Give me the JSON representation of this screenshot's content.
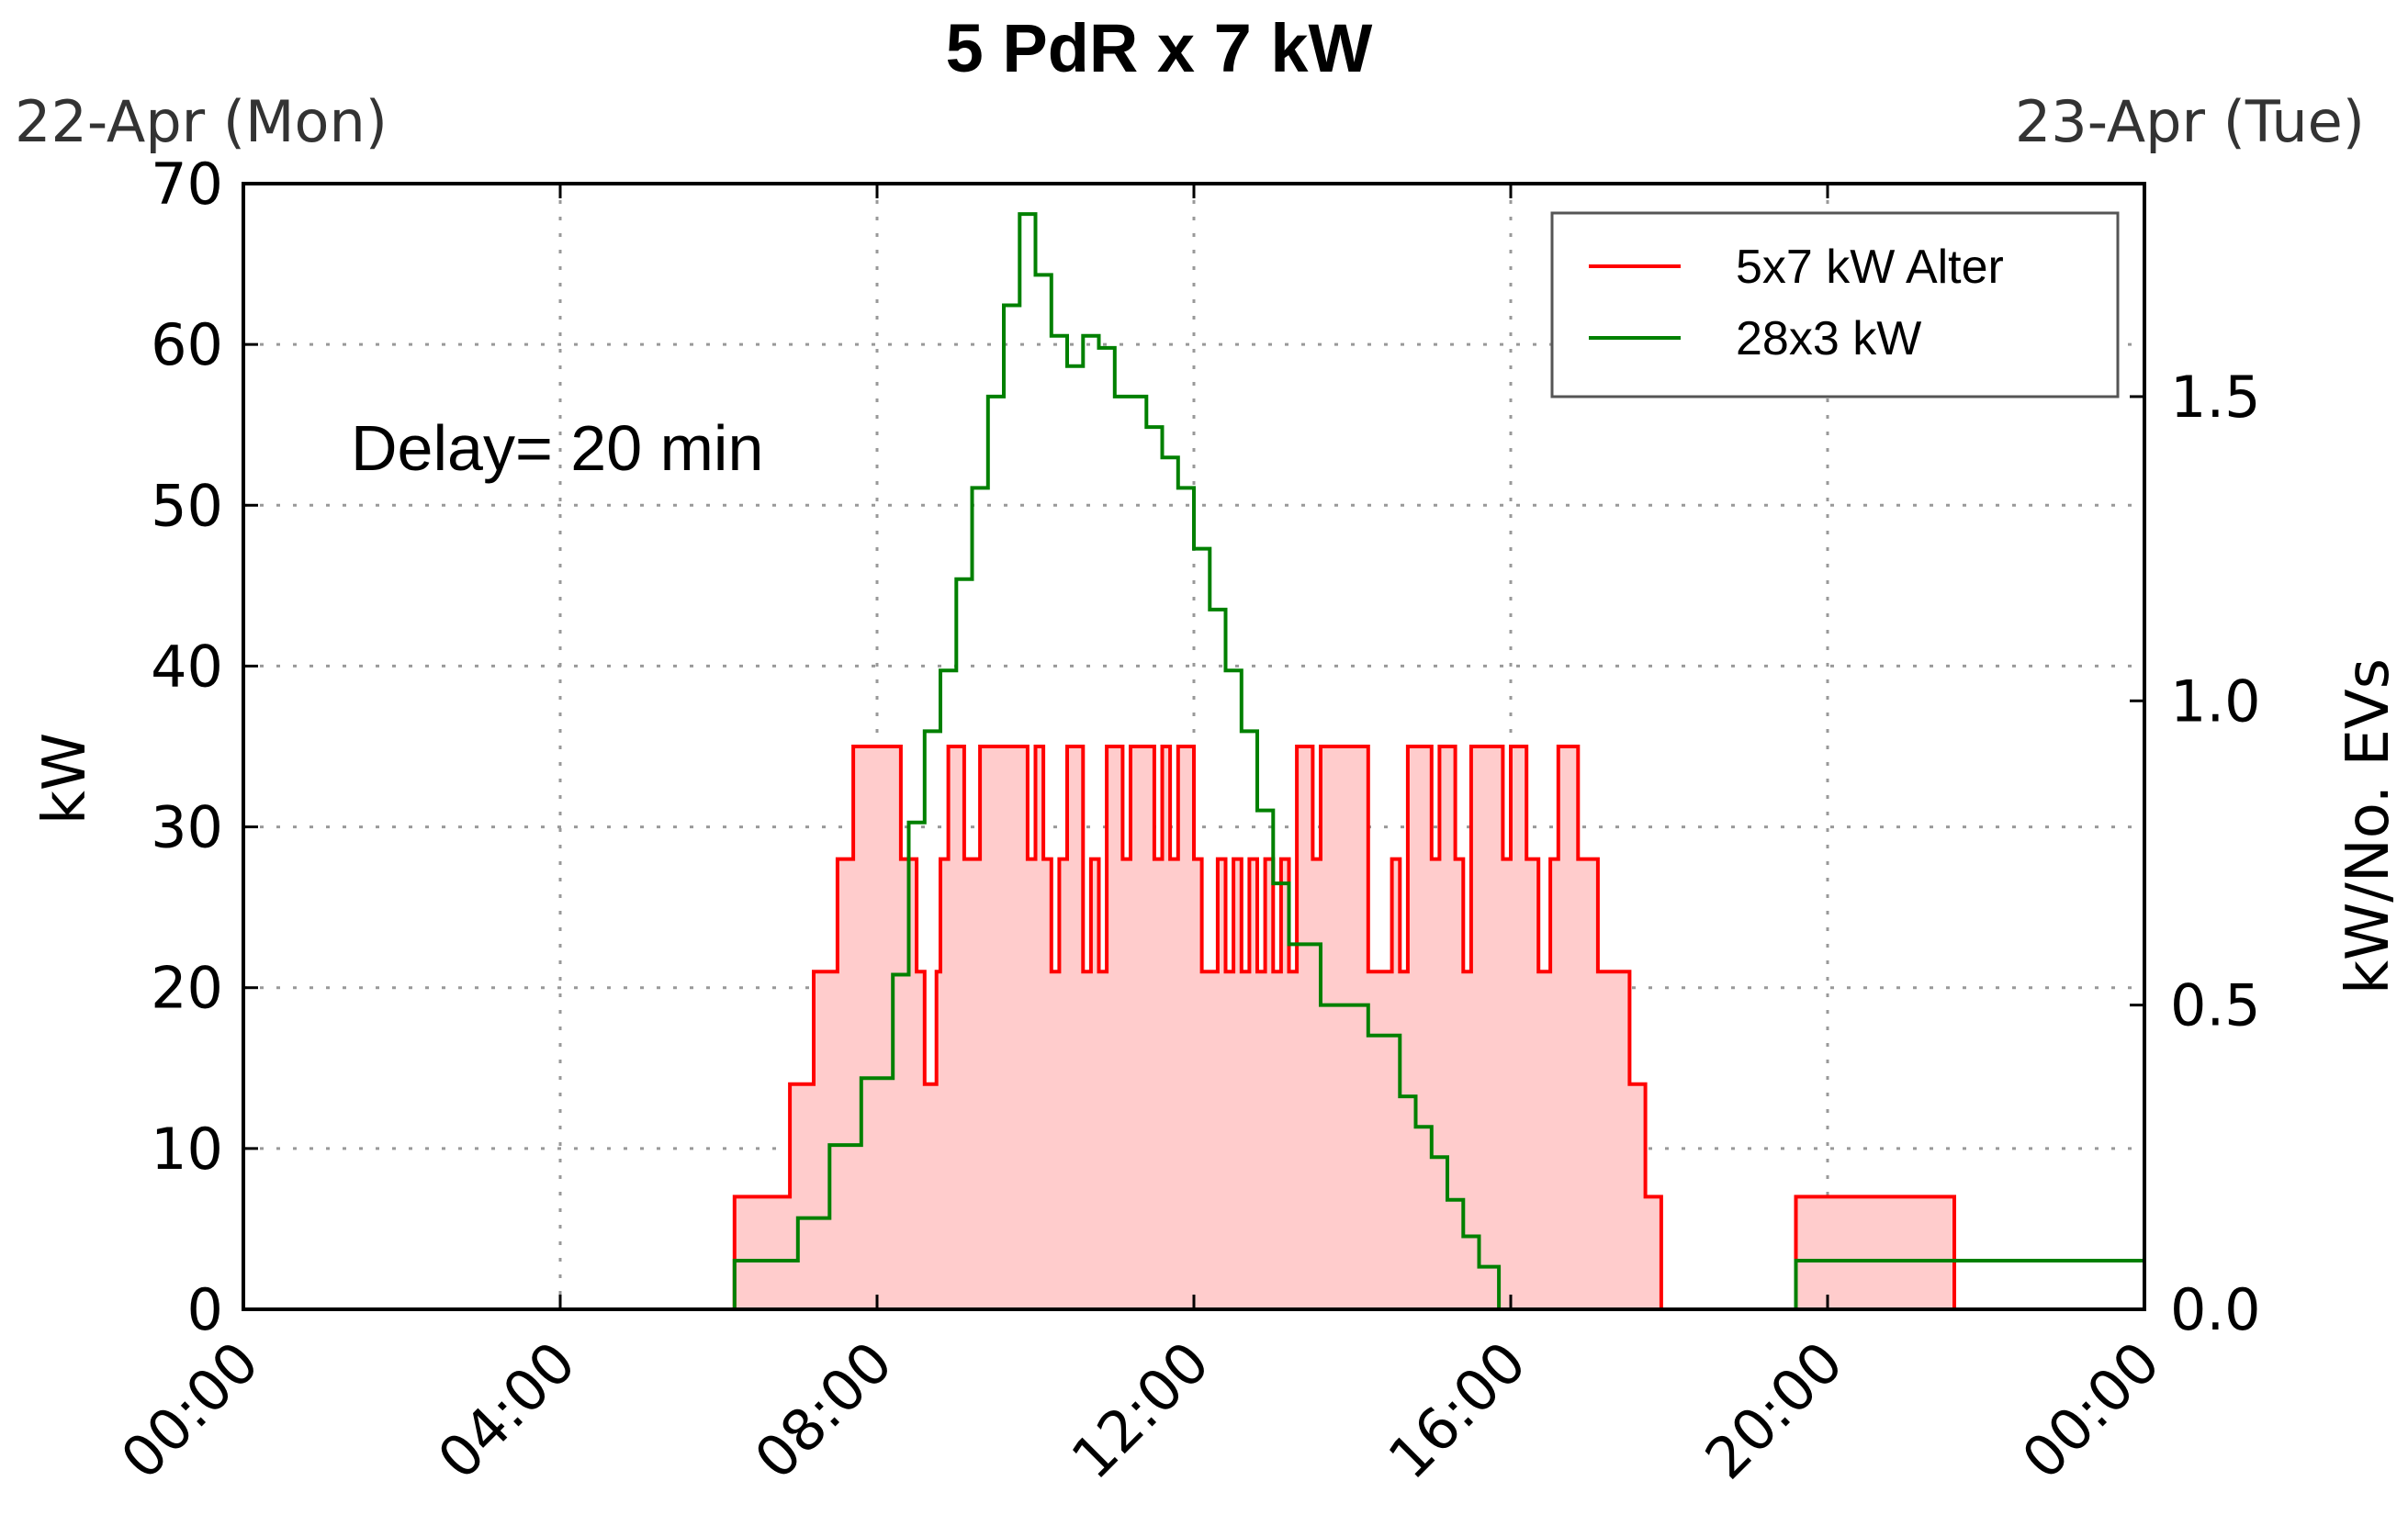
{
  "chart_data": {
    "type": "line",
    "title": "5 PdR x 7 kW",
    "left_top_label": "22-Apr (Mon)",
    "right_top_label": "23-Apr (Tue)",
    "annotation": "Delay= 20 min",
    "xlabel": "",
    "ylabel": "kW",
    "y2label": "kW/No. EVs",
    "x_unit": "hours",
    "xlim": [
      0,
      24
    ],
    "ylim": [
      0,
      70
    ],
    "y2lim": [
      0,
      1.85
    ],
    "x_ticks": [
      0,
      4,
      8,
      12,
      16,
      20,
      24
    ],
    "x_tick_labels": [
      "00:00",
      "04:00",
      "08:00",
      "12:00",
      "16:00",
      "20:00",
      "00:00"
    ],
    "y_ticks": [
      0,
      10,
      20,
      30,
      40,
      50,
      60,
      70
    ],
    "y_tick_labels": [
      "0",
      "10",
      "20",
      "30",
      "40",
      "50",
      "60",
      "70"
    ],
    "y2_ticks": [
      0,
      0.5,
      1.0,
      1.5
    ],
    "y2_tick_labels": [
      "0.0",
      "0.5",
      "1.0",
      "1.5"
    ],
    "grid": true,
    "legend_position": "top-right",
    "series": [
      {
        "name": "5x7 kW Alter",
        "color": "#ff0000",
        "fill": "#ffcccc",
        "axis": "left",
        "step": true,
        "x": [
          0,
          6.2,
          6.9,
          7.2,
          7.5,
          7.7,
          8.3,
          8.5,
          8.6,
          8.75,
          8.8,
          8.9,
          9.1,
          9.3,
          9.9,
          10.0,
          10.1,
          10.2,
          10.3,
          10.4,
          10.6,
          10.7,
          10.8,
          10.9,
          11.1,
          11.2,
          11.5,
          11.6,
          11.7,
          11.8,
          12.0,
          12.1,
          12.3,
          12.4,
          12.5,
          12.6,
          12.7,
          12.8,
          12.9,
          13.0,
          13.1,
          13.2,
          13.3,
          13.5,
          13.6,
          14.2,
          14.5,
          14.6,
          14.7,
          15.0,
          15.1,
          15.3,
          15.4,
          15.5,
          15.9,
          16.0,
          16.2,
          16.35,
          16.5,
          16.6,
          16.85,
          17.1,
          17.5,
          17.7,
          17.9,
          19.6,
          21.6
        ],
        "y": [
          0,
          7,
          14,
          21,
          28,
          35,
          28,
          21,
          14,
          21,
          28,
          35,
          28,
          35,
          28,
          35,
          28,
          21,
          28,
          35,
          21,
          28,
          21,
          35,
          28,
          35,
          28,
          35,
          28,
          35,
          28,
          21,
          28,
          21,
          28,
          21,
          28,
          21,
          28,
          21,
          28,
          21,
          35,
          28,
          35,
          21,
          28,
          21,
          35,
          28,
          35,
          28,
          21,
          35,
          28,
          35,
          28,
          21,
          28,
          35,
          28,
          21,
          14,
          7,
          0,
          7,
          0
        ]
      },
      {
        "name": "28x3 kW",
        "color": "#008000",
        "axis": "right",
        "step": true,
        "x": [
          0,
          6.2,
          7.0,
          7.4,
          7.8,
          8.2,
          8.4,
          8.6,
          8.8,
          9.0,
          9.2,
          9.4,
          9.6,
          9.8,
          10.0,
          10.2,
          10.4,
          10.6,
          10.8,
          11.0,
          11.2,
          11.4,
          11.6,
          11.8,
          12.0,
          12.2,
          12.4,
          12.6,
          12.8,
          13.0,
          13.2,
          13.6,
          14.2,
          14.6,
          14.8,
          15.0,
          15.2,
          15.4,
          15.6,
          15.85,
          19.6
        ],
        "y": [
          0,
          0.08,
          0.15,
          0.27,
          0.38,
          0.55,
          0.8,
          0.95,
          1.05,
          1.2,
          1.35,
          1.5,
          1.65,
          1.8,
          1.7,
          1.6,
          1.55,
          1.6,
          1.58,
          1.5,
          1.5,
          1.45,
          1.4,
          1.35,
          1.25,
          1.15,
          1.05,
          0.95,
          0.82,
          0.7,
          0.6,
          0.5,
          0.45,
          0.35,
          0.3,
          0.25,
          0.18,
          0.12,
          0.07,
          0,
          0.08
        ]
      }
    ]
  }
}
